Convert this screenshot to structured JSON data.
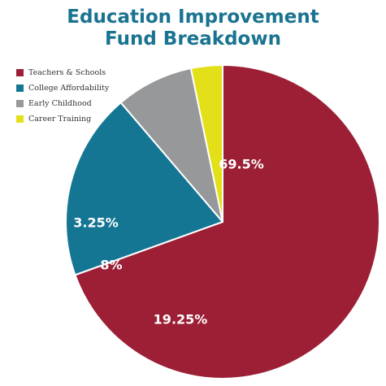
{
  "chart_data": {
    "type": "pie",
    "title_lines": [
      "Education Improvement",
      "Fund Breakdown"
    ],
    "start_angle_deg": 270,
    "direction": "clockwise",
    "legend_placement": "top-left",
    "slices": [
      {
        "name": "Teachers & Schools",
        "value": 69.5,
        "label": "69.5%",
        "color": "#9c1f35"
      },
      {
        "name": "College Affordability",
        "value": 19.25,
        "label": "19.25%",
        "color": "#157694"
      },
      {
        "name": "Early Childhood",
        "value": 8,
        "label": "8%",
        "color": "#97989a"
      },
      {
        "name": "Career Training",
        "value": 3.25,
        "label": "3.25%",
        "color": "#e3e019"
      }
    ]
  }
}
